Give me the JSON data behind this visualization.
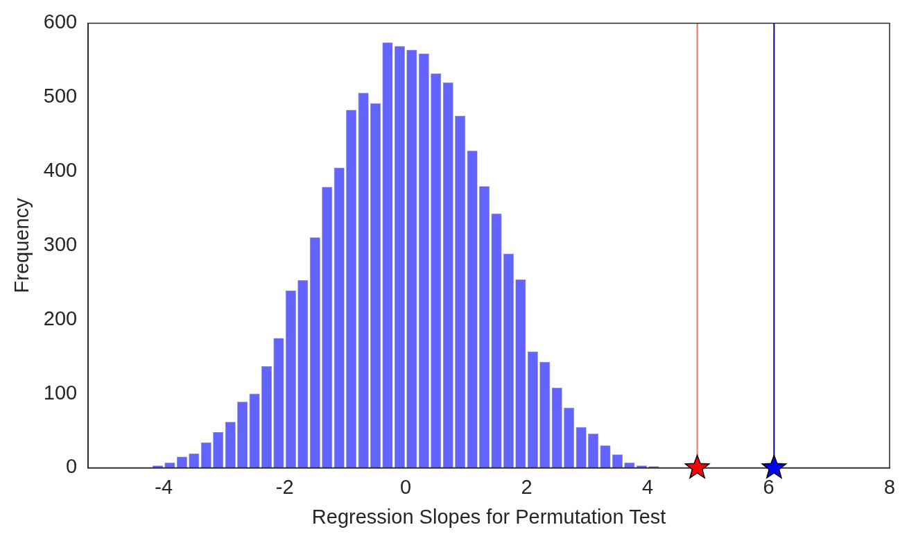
{
  "chart_data": {
    "type": "histogram",
    "xlabel": "Regression Slopes for Permutation Test",
    "ylabel": "Frequency",
    "bins": [
      -4.2,
      -4.0,
      -3.8,
      -3.6,
      -3.4,
      -3.2,
      -3.0,
      -2.8,
      -2.6,
      -2.4,
      -2.2,
      -2.0,
      -1.8,
      -1.6,
      -1.4,
      -1.2,
      -1.0,
      -0.8,
      -0.6,
      -0.4,
      -0.2,
      0,
      0.2,
      0.4,
      0.6,
      0.8,
      1.0,
      1.2,
      1.4,
      1.6,
      1.8,
      2.0,
      2.2,
      2.4,
      2.6,
      2.8,
      3.0,
      3.2,
      3.4,
      3.6,
      3.8,
      4.0,
      4.2
    ],
    "values": [
      3,
      7,
      15,
      19,
      34,
      48,
      62,
      89,
      100,
      137,
      175,
      239,
      253,
      311,
      379,
      405,
      483,
      506,
      492,
      574,
      569,
      564,
      559,
      532,
      520,
      475,
      428,
      380,
      343,
      289,
      254,
      157,
      143,
      108,
      81,
      55,
      46,
      30,
      18,
      7,
      3,
      2
    ],
    "color": "#6363ff",
    "series": [
      {
        "type": "scatter",
        "x": [
          4.82
        ],
        "values": [
          0
        ],
        "color": "#ff0000",
        "marker": "star"
      },
      {
        "type": "scatter",
        "x": [
          6.09
        ],
        "values": [
          0
        ],
        "color": "#0000ff",
        "marker": "star"
      }
    ],
    "ref_lines": [
      {
        "axis": "x",
        "value": 4.82,
        "color": "#e87070"
      },
      {
        "axis": "x",
        "value": 6.09,
        "color": "#0000a0"
      }
    ],
    "xlim": [
      -5.25,
      8
    ],
    "xticks": [
      -4,
      -2,
      0,
      2,
      4,
      6,
      8
    ],
    "ylim": [
      0,
      600
    ],
    "yticks": [
      0,
      100,
      200,
      300,
      400,
      500,
      600
    ],
    "grid": false,
    "legend": false
  }
}
